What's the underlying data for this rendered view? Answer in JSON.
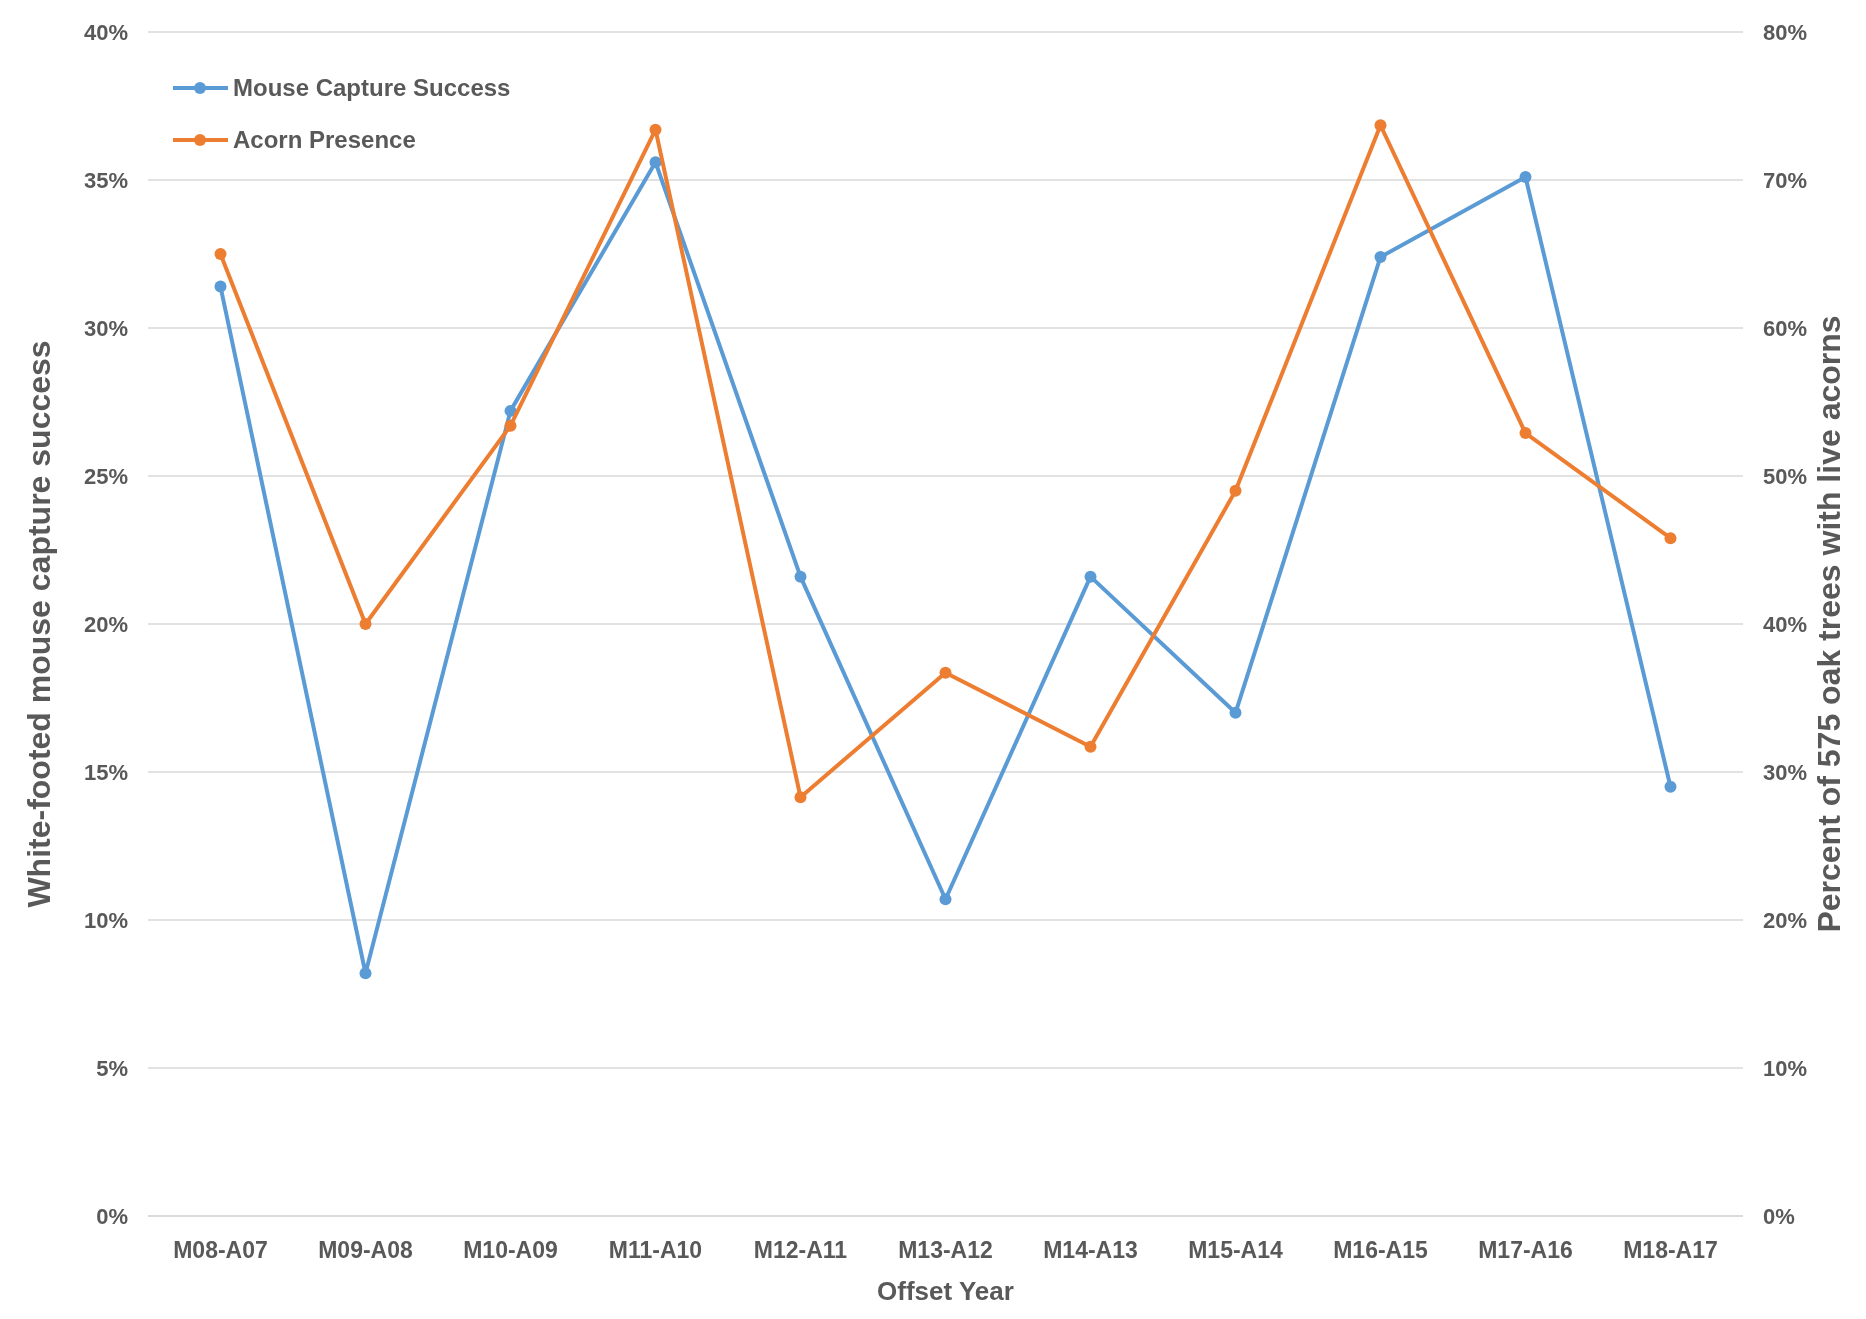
{
  "chart_data": {
    "type": "line",
    "xlabel": "Offset Year",
    "ylabel": "White-footed mouse capture success",
    "y2label": "Percent of 575 oak trees with live acorns",
    "categories": [
      "M08-A07",
      "M09-A08",
      "M10-A09",
      "M11-A10",
      "M12-A11",
      "M13-A12",
      "M14-A13",
      "M15-A14",
      "M16-A15",
      "M17-A16",
      "M18-A17"
    ],
    "series": [
      {
        "name": "Mouse Capture Success",
        "color": "#5b9bd5",
        "values": [
          31.4,
          8.2,
          27.2,
          35.6,
          21.6,
          10.7,
          21.6,
          17.0,
          32.4,
          35.1,
          14.5
        ]
      },
      {
        "name": "Acorn Presence",
        "color": "#ed7d31",
        "axis": "y2",
        "values": [
          65.0,
          40.0,
          53.4,
          73.4,
          28.3,
          36.7,
          31.7,
          49.0,
          73.7,
          52.9,
          45.8
        ]
      }
    ],
    "ylim": [
      0,
      40
    ],
    "yticks": [
      {
        "value": 0,
        "label": "0%"
      },
      {
        "value": 5,
        "label": "5%"
      },
      {
        "value": 10,
        "label": "10%"
      },
      {
        "value": 15,
        "label": "15%"
      },
      {
        "value": 20,
        "label": "20%"
      },
      {
        "value": 25,
        "label": "25%"
      },
      {
        "value": 30,
        "label": "30%"
      },
      {
        "value": 35,
        "label": "35%"
      },
      {
        "value": 40,
        "label": "40%"
      }
    ],
    "y2lim": [
      0,
      80
    ],
    "y2ticks": [
      {
        "value": 0,
        "label": "0%"
      },
      {
        "value": 10,
        "label": "10%"
      },
      {
        "value": 20,
        "label": "20%"
      },
      {
        "value": 30,
        "label": "30%"
      },
      {
        "value": 40,
        "label": "40%"
      },
      {
        "value": 50,
        "label": "50%"
      },
      {
        "value": 60,
        "label": "60%"
      },
      {
        "value": 70,
        "label": "70%"
      },
      {
        "value": 80,
        "label": "80%"
      }
    ],
    "grid": "y",
    "legend": "top left",
    "marker": "circle",
    "line_style": "solid"
  }
}
